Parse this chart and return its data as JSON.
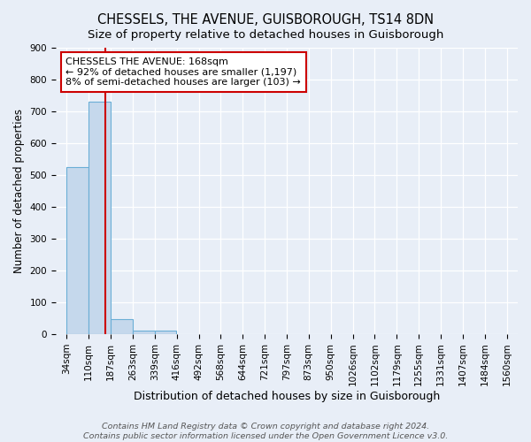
{
  "title": "CHESSELS, THE AVENUE, GUISBOROUGH, TS14 8DN",
  "subtitle": "Size of property relative to detached houses in Guisborough",
  "xlabel": "Distribution of detached houses by size in Guisborough",
  "ylabel": "Number of detached properties",
  "bin_labels": [
    "34sqm",
    "110sqm",
    "187sqm",
    "263sqm",
    "339sqm",
    "416sqm",
    "492sqm",
    "568sqm",
    "644sqm",
    "721sqm",
    "797sqm",
    "873sqm",
    "950sqm",
    "1026sqm",
    "1102sqm",
    "1179sqm",
    "1255sqm",
    "1331sqm",
    "1407sqm",
    "1484sqm",
    "1560sqm"
  ],
  "bin_edges": [
    34,
    110,
    187,
    263,
    339,
    416,
    492,
    568,
    644,
    721,
    797,
    873,
    950,
    1026,
    1102,
    1179,
    1255,
    1331,
    1407,
    1484,
    1560
  ],
  "bar_heights": [
    525,
    730,
    47,
    12,
    10,
    0,
    0,
    0,
    0,
    0,
    0,
    0,
    0,
    0,
    0,
    0,
    0,
    0,
    0,
    0
  ],
  "bar_color": "#c5d8ec",
  "bar_edge_color": "#6aaed6",
  "red_line_x": 168,
  "annotation_line1": "CHESSELS THE AVENUE: 168sqm",
  "annotation_line2": "← 92% of detached houses are smaller (1,197)",
  "annotation_line3": "8% of semi-detached houses are larger (103) →",
  "footer_text": "Contains HM Land Registry data © Crown copyright and database right 2024.\nContains public sector information licensed under the Open Government Licence v3.0.",
  "ylim": [
    0,
    900
  ],
  "yticks": [
    0,
    100,
    200,
    300,
    400,
    500,
    600,
    700,
    800,
    900
  ],
  "background_color": "#e8eef7",
  "plot_background": "#e8eef7",
  "grid_color": "#ffffff",
  "annotation_box_facecolor": "#ffffff",
  "annotation_box_edgecolor": "#cc0000",
  "title_fontsize": 10.5,
  "subtitle_fontsize": 9.5,
  "xlabel_fontsize": 9,
  "ylabel_fontsize": 8.5,
  "tick_fontsize": 7.5,
  "annotation_fontsize": 8,
  "footer_fontsize": 6.8
}
